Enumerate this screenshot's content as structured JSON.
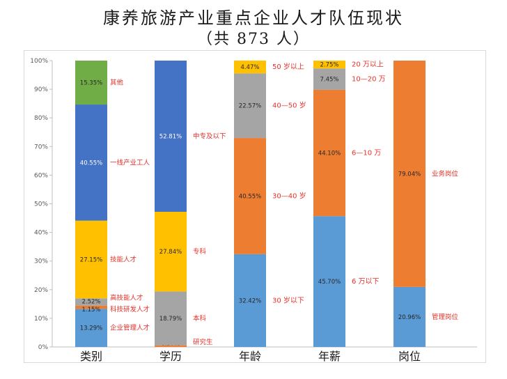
{
  "title": "康养旅游产业重点企业人才队伍现状",
  "subtitle": "（共 873 人）",
  "chart_data": {
    "type": "bar",
    "stacked": true,
    "percent": true,
    "ylim": [
      0,
      100
    ],
    "yticks": [
      "0%",
      "10%",
      "20%",
      "30%",
      "40%",
      "50%",
      "60%",
      "70%",
      "80%",
      "90%",
      "100%"
    ],
    "grid": false,
    "categories": [
      "类别",
      "学历",
      "年龄",
      "年薪",
      "岗位"
    ],
    "stacks": [
      {
        "category": "类别",
        "segments": [
          {
            "value": 13.29,
            "label": "13.29%",
            "name": "企业管理人才",
            "color": "#5b9bd5"
          },
          {
            "value": 1.15,
            "label": "1.15%",
            "name": "科技研发人才",
            "color": "#ed7d31"
          },
          {
            "value": 2.52,
            "label": "2.52%",
            "name": "高技能人才",
            "color": "#a5a5a5"
          },
          {
            "value": 27.15,
            "label": "27.15%",
            "name": "技能人才",
            "color": "#ffc000"
          },
          {
            "value": 40.55,
            "label": "40.55%",
            "name": "一线产业工人",
            "color": "#4472c4"
          },
          {
            "value": 15.35,
            "label": "15.35%",
            "name": "其他",
            "color": "#70ad47"
          }
        ]
      },
      {
        "category": "学历",
        "segments": [
          {
            "value": 0.57,
            "label": "0.57%",
            "name": "研究生",
            "color": "#ed7d31"
          },
          {
            "value": 18.79,
            "label": "18.79%",
            "name": "本科",
            "color": "#a5a5a5"
          },
          {
            "value": 27.84,
            "label": "27.84%",
            "name": "专科",
            "color": "#ffc000"
          },
          {
            "value": 52.81,
            "label": "52.81%",
            "name": "中专及以下",
            "color": "#4472c4"
          }
        ]
      },
      {
        "category": "年龄",
        "segments": [
          {
            "value": 32.42,
            "label": "32.42%",
            "name": "30 岁以下",
            "color": "#5b9bd5"
          },
          {
            "value": 40.55,
            "label": "40.55%",
            "name": "30—40 岁",
            "color": "#ed7d31"
          },
          {
            "value": 22.57,
            "label": "22.57%",
            "name": "40—50 岁",
            "color": "#a5a5a5"
          },
          {
            "value": 4.47,
            "label": "4.47%",
            "name": "50 岁以上",
            "color": "#ffc000"
          }
        ]
      },
      {
        "category": "年薪",
        "segments": [
          {
            "value": 45.7,
            "label": "45.70%",
            "name": "6 万以下",
            "color": "#5b9bd5"
          },
          {
            "value": 44.1,
            "label": "44.10%",
            "name": "6—10 万",
            "color": "#ed7d31"
          },
          {
            "value": 7.45,
            "label": "7.45%",
            "name": "10—20 万",
            "color": "#a5a5a5"
          },
          {
            "value": 2.75,
            "label": "2.75%",
            "name": "20 万以上",
            "color": "#ffc000"
          }
        ]
      },
      {
        "category": "岗位",
        "segments": [
          {
            "value": 20.96,
            "label": "20.96%",
            "name": "管理岗位",
            "color": "#5b9bd5"
          },
          {
            "value": 79.04,
            "label": "79.04%",
            "name": "业务岗位",
            "color": "#ed7d31"
          }
        ]
      }
    ],
    "annotation_color": "#e8312a"
  }
}
